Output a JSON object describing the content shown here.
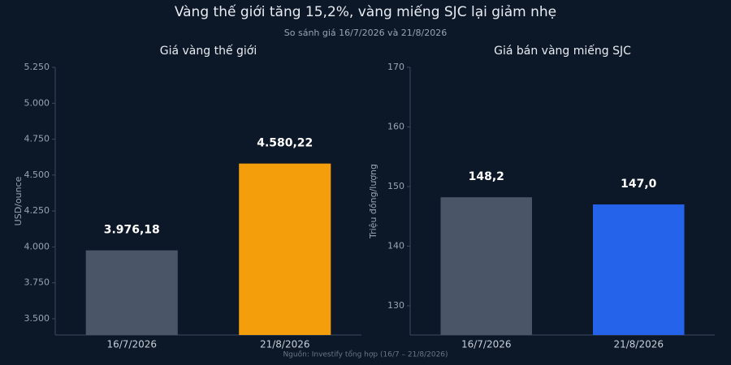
{
  "title": "Vàng thế giới tăng 15,2%, vàng miếng SJC lại giảm nhẹ",
  "subtitle": "So sánh giá 16/7/2026 và 21/8/2026",
  "source": "Nguồn: Investify tổng hợp (16/7 – 21/8/2026)",
  "chart_data": [
    {
      "type": "bar",
      "title": "Giá vàng thế giới",
      "y_label": "USD/ounce",
      "categories": [
        "16/7/2026",
        "21/8/2026"
      ],
      "values": [
        3976.18,
        4580.22
      ],
      "value_labels": [
        "3.976,18",
        "4.580,22"
      ],
      "colors": [
        "#4a5568",
        "#f59e0b"
      ],
      "ylim": [
        3387,
        5250
      ],
      "yticks": [
        {
          "value": 3500,
          "label": "3.500"
        },
        {
          "value": 3750,
          "label": "3.750"
        },
        {
          "value": 4000,
          "label": "4.000"
        },
        {
          "value": 4250,
          "label": "4.250"
        },
        {
          "value": 4500,
          "label": "4.500"
        },
        {
          "value": 4750,
          "label": "4.750"
        },
        {
          "value": 5000,
          "label": "5.000"
        },
        {
          "value": 5250,
          "label": "5.250"
        }
      ]
    },
    {
      "type": "bar",
      "title": "Giá bán vàng miếng SJC",
      "y_label": "Triệu đồng/lượng",
      "categories": [
        "16/7/2026",
        "21/8/2026"
      ],
      "values": [
        148.2,
        147.0
      ],
      "value_labels": [
        "148,2",
        "147,0"
      ],
      "colors": [
        "#4a5568",
        "#2563eb"
      ],
      "ylim": [
        125.1,
        170
      ],
      "yticks": [
        130,
        140,
        150,
        160,
        170
      ]
    }
  ]
}
